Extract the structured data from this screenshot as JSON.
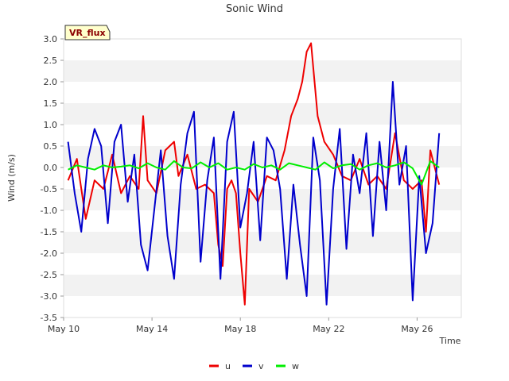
{
  "chart_data": {
    "type": "line",
    "title": "Sonic Wind",
    "xlabel": "Time",
    "ylabel": "Wind (m/s)",
    "badge": "VR_flux",
    "ylim": [
      -3.5,
      3.0
    ],
    "yticks": [
      -3.5,
      -3.0,
      -2.5,
      -2.0,
      -1.5,
      -1.0,
      -0.5,
      0.0,
      0.5,
      1.0,
      1.5,
      2.0,
      2.5,
      3.0
    ],
    "ytick_labels": [
      "-3.5",
      "-3.0",
      "-2.5",
      "-2.0",
      "-1.5",
      "-1.0",
      "-0.5",
      "0.0",
      "0.5",
      "1.0",
      "1.5",
      "2.0",
      "2.5",
      "3.0"
    ],
    "xlim": [
      0,
      18
    ],
    "xticks": [
      0,
      4,
      8,
      12,
      16
    ],
    "xtick_labels": [
      "May 10",
      "May 14",
      "May 18",
      "May 22",
      "May 26"
    ],
    "grid": "horizontal bands",
    "legend_position": "bottom-center",
    "series": [
      {
        "name": "u",
        "color": "#ee0000",
        "x": [
          0.2,
          0.6,
          1.0,
          1.4,
          1.8,
          2.2,
          2.6,
          3.0,
          3.4,
          3.6,
          3.8,
          4.2,
          4.6,
          5.0,
          5.2,
          5.6,
          6.0,
          6.4,
          6.8,
          7.0,
          7.2,
          7.4,
          7.6,
          7.8,
          8.0,
          8.2,
          8.4,
          8.8,
          9.2,
          9.6,
          10.0,
          10.3,
          10.6,
          10.8,
          11.0,
          11.2,
          11.5,
          11.8,
          12.2,
          12.6,
          13.0,
          13.4,
          13.8,
          14.2,
          14.6,
          15.0,
          15.4,
          15.8,
          16.2,
          16.4,
          16.6,
          17.0
        ],
        "values": [
          -0.3,
          0.2,
          -1.2,
          -0.3,
          -0.5,
          0.3,
          -0.6,
          -0.2,
          -0.5,
          1.2,
          -0.3,
          -0.6,
          0.4,
          0.6,
          -0.2,
          0.3,
          -0.5,
          -0.4,
          -0.6,
          -1.8,
          -2.3,
          -0.5,
          -0.3,
          -0.6,
          -2.0,
          -3.2,
          -0.5,
          -0.8,
          -0.2,
          -0.3,
          0.4,
          1.2,
          1.6,
          2.0,
          2.7,
          2.9,
          1.2,
          0.6,
          0.3,
          -0.2,
          -0.3,
          0.2,
          -0.4,
          -0.2,
          -0.5,
          0.8,
          -0.3,
          -0.5,
          -0.3,
          -1.5,
          0.4,
          -0.4
        ]
      },
      {
        "name": "v",
        "color": "#0000cc",
        "x": [
          0.2,
          0.5,
          0.8,
          1.1,
          1.4,
          1.7,
          2.0,
          2.3,
          2.6,
          2.9,
          3.2,
          3.5,
          3.8,
          4.1,
          4.4,
          4.7,
          5.0,
          5.3,
          5.6,
          5.9,
          6.2,
          6.5,
          6.8,
          7.1,
          7.4,
          7.7,
          8.0,
          8.3,
          8.6,
          8.9,
          9.2,
          9.5,
          9.8,
          10.1,
          10.4,
          10.7,
          11.0,
          11.3,
          11.6,
          11.9,
          12.2,
          12.5,
          12.8,
          13.1,
          13.4,
          13.7,
          14.0,
          14.3,
          14.6,
          14.9,
          15.2,
          15.5,
          15.8,
          16.1,
          16.4,
          16.7,
          17.0
        ],
        "values": [
          0.6,
          -0.6,
          -1.5,
          0.2,
          0.9,
          0.5,
          -1.3,
          0.6,
          1.0,
          -0.8,
          0.3,
          -1.8,
          -2.4,
          -1.0,
          0.4,
          -1.6,
          -2.6,
          -0.4,
          0.8,
          1.3,
          -2.2,
          -0.3,
          0.7,
          -2.6,
          0.6,
          1.3,
          -1.4,
          -0.6,
          0.6,
          -1.7,
          0.7,
          0.4,
          -0.5,
          -2.6,
          -0.4,
          -1.8,
          -3.0,
          0.7,
          -0.3,
          -3.2,
          -0.5,
          0.9,
          -1.9,
          0.3,
          -0.6,
          0.8,
          -1.6,
          0.6,
          -1.0,
          2.0,
          -0.4,
          0.5,
          -3.1,
          -0.2,
          -2.0,
          -1.3,
          0.8
        ]
      },
      {
        "name": "w",
        "color": "#00ee00",
        "x": [
          0.2,
          0.6,
          1.0,
          1.4,
          1.8,
          2.2,
          2.6,
          3.0,
          3.4,
          3.8,
          4.2,
          4.6,
          5.0,
          5.4,
          5.8,
          6.2,
          6.6,
          7.0,
          7.4,
          7.8,
          8.2,
          8.6,
          9.0,
          9.4,
          9.8,
          10.2,
          10.6,
          11.0,
          11.4,
          11.8,
          12.2,
          12.6,
          13.0,
          13.4,
          13.8,
          14.2,
          14.6,
          15.0,
          15.4,
          15.8,
          16.2,
          16.6,
          17.0
        ],
        "values": [
          -0.05,
          0.05,
          0.0,
          -0.05,
          0.05,
          0.0,
          0.02,
          0.05,
          -0.02,
          0.1,
          0.0,
          -0.05,
          0.15,
          0.0,
          -0.02,
          0.12,
          0.0,
          0.1,
          -0.05,
          0.0,
          -0.05,
          0.08,
          0.0,
          0.05,
          -0.05,
          0.1,
          0.05,
          0.0,
          -0.05,
          0.12,
          -0.02,
          0.05,
          0.08,
          -0.05,
          0.05,
          0.1,
          0.0,
          0.05,
          0.12,
          -0.02,
          -0.4,
          0.15,
          0.0
        ]
      }
    ]
  }
}
